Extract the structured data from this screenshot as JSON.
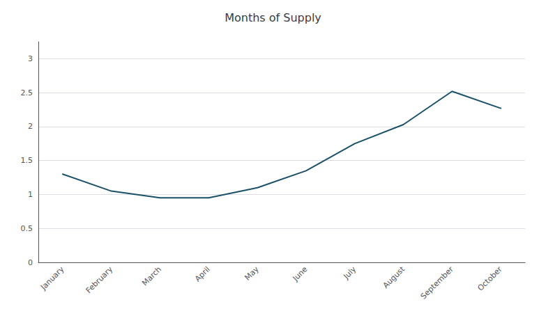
{
  "chart_data": {
    "type": "line",
    "title": "Months of Supply",
    "categories": [
      "January",
      "February",
      "March",
      "April",
      "May",
      "June",
      "July",
      "August",
      "September",
      "October"
    ],
    "values": [
      1.3,
      1.05,
      0.95,
      0.95,
      1.1,
      1.35,
      1.75,
      2.03,
      2.52,
      2.27
    ],
    "color": "#1a5169",
    "ylim": [
      0,
      3.25
    ],
    "yticks": [
      0,
      0.5,
      1,
      1.5,
      2,
      2.5,
      3
    ],
    "grid": true
  }
}
